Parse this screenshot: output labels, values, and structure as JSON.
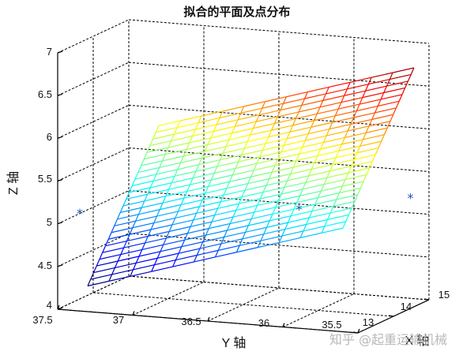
{
  "watermark": "知乎 @起重运输机械",
  "chart_data": {
    "type": "scatter",
    "title": "拟合的平面及点分布",
    "xlabel": "X 轴",
    "ylabel": "Y 轴",
    "zlabel": "Z 轴",
    "xlim": [
      13,
      15
    ],
    "ylim": [
      35.5,
      37.5
    ],
    "zlim": [
      4,
      7
    ],
    "x_ticks": [
      "13",
      "14",
      "15"
    ],
    "y_ticks": [
      "37.5",
      "37",
      "36.5",
      "36",
      "35.5"
    ],
    "z_ticks": [
      "4",
      "4.5",
      "5",
      "5.5",
      "6",
      "6.5",
      "7"
    ],
    "grid": true,
    "series": [
      {
        "marker": "*",
        "color": "#1f4fb8",
        "points": [
          {
            "x": 13.2,
            "y": 37.4,
            "z": 5.1
          },
          {
            "x": 14.3,
            "y": 36.2,
            "z": 5.1
          },
          {
            "x": 14.9,
            "y": 35.6,
            "z": 5.2
          }
        ]
      }
    ],
    "surface": {
      "type": "fitted-plane-mesh",
      "colormap": "jet",
      "x_range": [
        13,
        15
      ],
      "y_range": [
        35.6,
        37.3
      ],
      "z_corners": {
        "min_corner": 4.3,
        "max_corner": 6.7
      }
    }
  }
}
